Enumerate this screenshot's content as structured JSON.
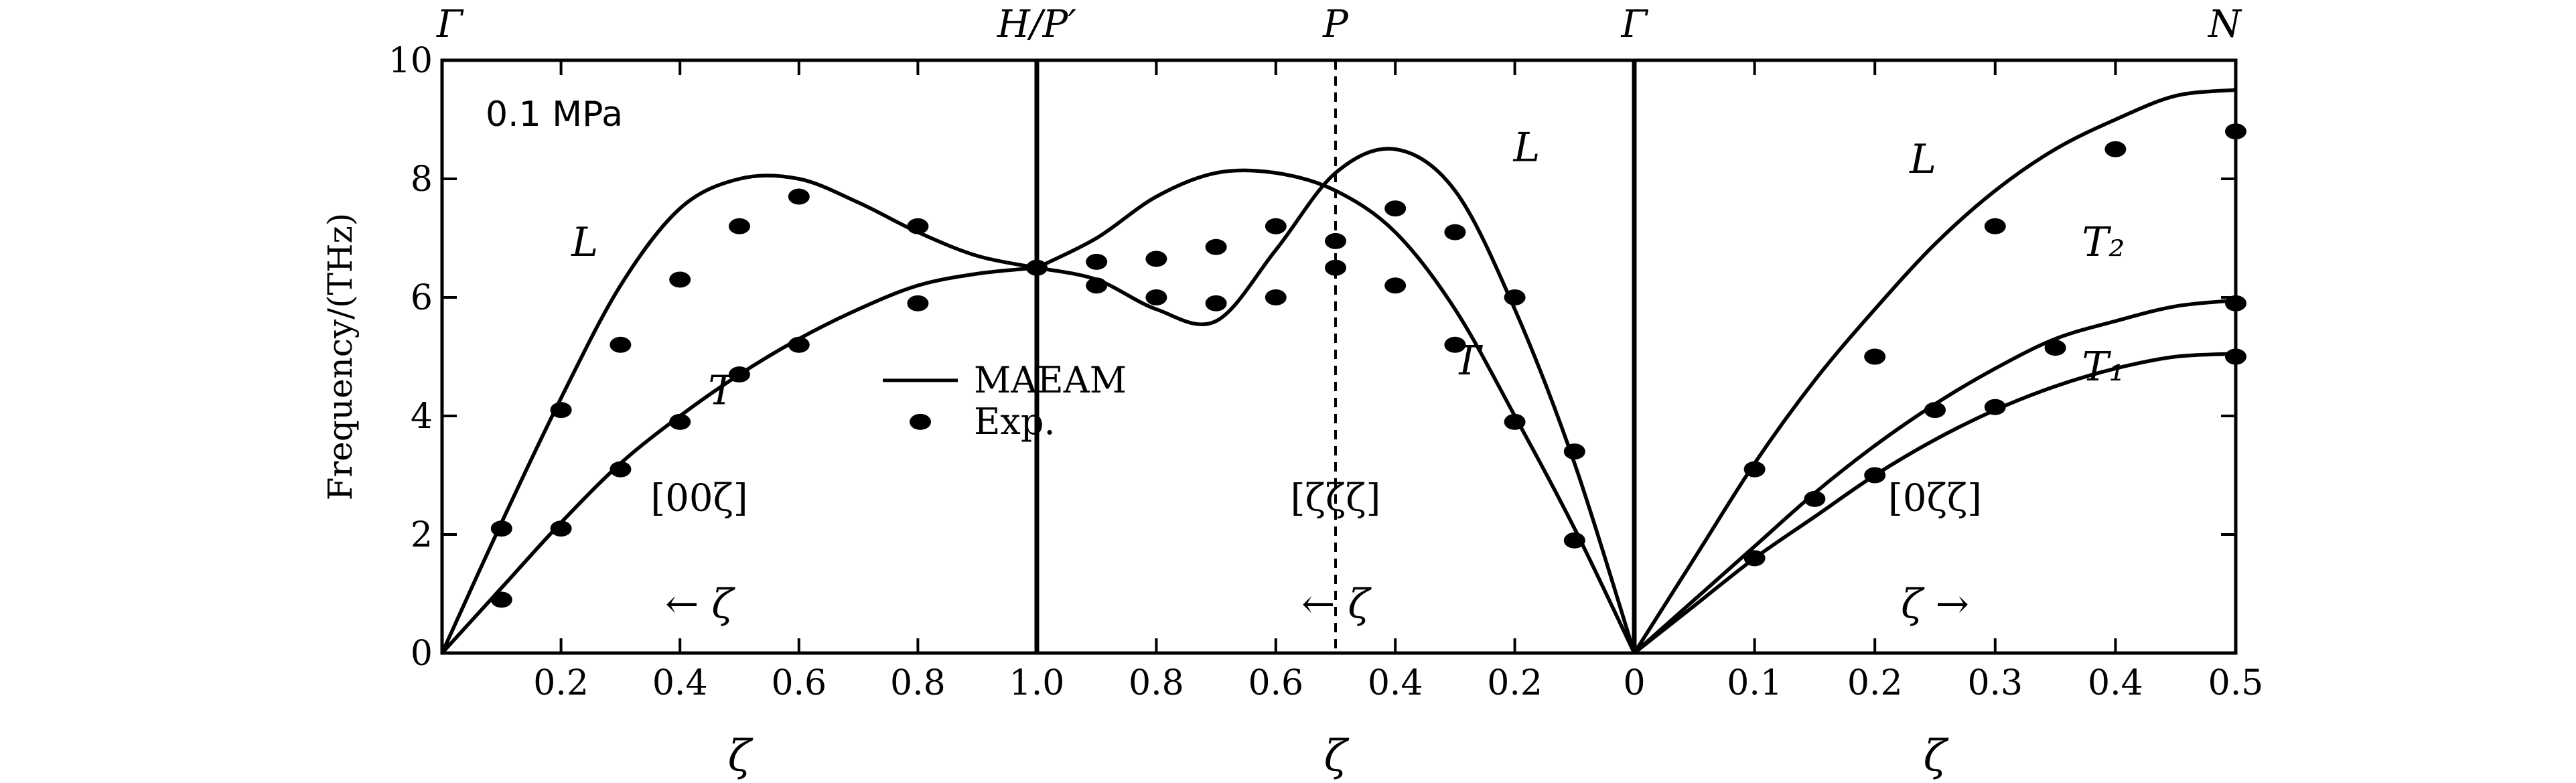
{
  "chart_data": {
    "type": "line",
    "title": "",
    "ylabel": "Frequency/(THz)",
    "ylim": [
      0,
      10
    ],
    "yticks": [
      "0",
      "2",
      "4",
      "6",
      "8",
      "10"
    ],
    "pressure_label": "0.1 MPa",
    "symmetry_points": [
      "Γ",
      "H/P′",
      "P",
      "Γ",
      "N"
    ],
    "panels": [
      {
        "direction": "[00ζ]",
        "xlabel": "ζ",
        "arrow": "← ζ",
        "xlim": [
          0,
          1
        ],
        "xticks": [
          "0.2",
          "0.4",
          "0.6",
          "0.8",
          "1.0"
        ],
        "xtick_values": [
          0.2,
          0.4,
          0.6,
          0.8,
          1.0
        ],
        "series": [
          {
            "name": "L",
            "kind": "theory",
            "x": [
              0,
              0.1,
              0.2,
              0.3,
              0.4,
              0.5,
              0.6,
              0.7,
              0.8,
              0.9,
              1.0
            ],
            "y": [
              0,
              2.2,
              4.3,
              6.2,
              7.5,
              8.0,
              8.0,
              7.6,
              7.1,
              6.7,
              6.5
            ]
          },
          {
            "name": "T",
            "kind": "theory",
            "x": [
              0,
              0.1,
              0.2,
              0.3,
              0.4,
              0.5,
              0.6,
              0.7,
              0.8,
              0.9,
              1.0
            ],
            "y": [
              0,
              1.1,
              2.2,
              3.2,
              4.0,
              4.7,
              5.3,
              5.8,
              6.2,
              6.4,
              6.5
            ]
          },
          {
            "name": "Exp.",
            "kind": "experiment",
            "x": [
              0.1,
              0.2,
              0.3,
              0.4,
              0.5,
              0.6,
              0.8,
              1.0,
              0.1,
              0.2,
              0.3,
              0.4,
              0.5,
              0.6,
              0.8
            ],
            "y": [
              2.1,
              4.1,
              5.2,
              6.3,
              7.2,
              7.7,
              7.2,
              6.5,
              0.9,
              2.1,
              3.1,
              3.9,
              4.7,
              5.2,
              5.9
            ]
          }
        ],
        "labels": [
          {
            "text": "L",
            "x": 0.24,
            "y": 6.7
          },
          {
            "text": "T",
            "x": 0.47,
            "y": 4.2
          }
        ]
      },
      {
        "direction": "[ζζζ]",
        "xlabel": "ζ",
        "arrow": "← ζ",
        "xlim": [
          1,
          0
        ],
        "xticks": [
          "0.8",
          "0.6",
          "0.4",
          "0.2",
          "0"
        ],
        "xtick_values": [
          0.8,
          0.6,
          0.4,
          0.2,
          0
        ],
        "series": [
          {
            "name": "L",
            "kind": "theory",
            "x": [
              1.0,
              0.9,
              0.8,
              0.7,
              0.6,
              0.5,
              0.4,
              0.3,
              0.2,
              0.1,
              0
            ],
            "y": [
              6.5,
              6.3,
              5.8,
              5.6,
              6.8,
              8.1,
              8.5,
              7.8,
              5.8,
              3.2,
              0
            ]
          },
          {
            "name": "T",
            "kind": "theory",
            "x": [
              1.0,
              0.9,
              0.8,
              0.7,
              0.6,
              0.5,
              0.4,
              0.3,
              0.2,
              0.1,
              0
            ],
            "y": [
              6.5,
              7.0,
              7.7,
              8.1,
              8.1,
              7.8,
              7.1,
              5.8,
              4.0,
              2.1,
              0
            ]
          },
          {
            "name": "Exp.",
            "kind": "experiment",
            "x": [
              0.9,
              0.8,
              0.7,
              0.6,
              0.5,
              0.4,
              0.3,
              0.2,
              0.9,
              0.8,
              0.7,
              0.6,
              0.5,
              0.4,
              0.3,
              0.2,
              0.1,
              0.1
            ],
            "y": [
              6.6,
              6.65,
              6.85,
              7.2,
              6.95,
              7.5,
              7.1,
              6.0,
              6.2,
              6.0,
              5.9,
              6.0,
              6.5,
              6.2,
              5.2,
              3.9,
              3.4,
              1.9
            ]
          }
        ],
        "labels": [
          {
            "text": "L",
            "x": 0.18,
            "y": 8.3
          },
          {
            "text": "T",
            "x": 0.28,
            "y": 4.7
          }
        ]
      },
      {
        "direction": "[0ζζ]",
        "xlabel": "ζ",
        "arrow": "ζ →",
        "xlim": [
          0,
          0.5
        ],
        "xticks": [
          "0",
          "0.1",
          "0.2",
          "0.3",
          "0.4",
          "0.5"
        ],
        "xtick_values": [
          0,
          0.1,
          0.2,
          0.3,
          0.4,
          0.5
        ],
        "series": [
          {
            "name": "L",
            "kind": "theory",
            "x": [
              0,
              0.05,
              0.1,
              0.15,
              0.2,
              0.25,
              0.3,
              0.35,
              0.4,
              0.45,
              0.5
            ],
            "y": [
              0,
              1.6,
              3.2,
              4.6,
              5.8,
              6.9,
              7.8,
              8.5,
              9.0,
              9.4,
              9.5
            ]
          },
          {
            "name": "T₂",
            "kind": "theory",
            "x": [
              0,
              0.05,
              0.1,
              0.15,
              0.2,
              0.25,
              0.3,
              0.35,
              0.4,
              0.45,
              0.5
            ],
            "y": [
              0,
              0.9,
              1.8,
              2.7,
              3.5,
              4.2,
              4.8,
              5.3,
              5.6,
              5.85,
              5.95
            ]
          },
          {
            "name": "T₁",
            "kind": "theory",
            "x": [
              0,
              0.05,
              0.1,
              0.15,
              0.2,
              0.25,
              0.3,
              0.35,
              0.4,
              0.45,
              0.5
            ],
            "y": [
              0,
              0.8,
              1.6,
              2.3,
              3.0,
              3.6,
              4.1,
              4.5,
              4.8,
              5.0,
              5.05
            ]
          },
          {
            "name": "Exp.",
            "kind": "experiment",
            "x": [
              0.1,
              0.2,
              0.3,
              0.4,
              0.5,
              0.1,
              0.15,
              0.2,
              0.25,
              0.3,
              0.35,
              0.5,
              0.5
            ],
            "y": [
              3.1,
              5.0,
              7.2,
              8.5,
              8.8,
              1.6,
              2.6,
              3.0,
              4.1,
              4.15,
              5.15,
              5.9,
              5.0
            ]
          }
        ],
        "labels": [
          {
            "text": "L",
            "x": 0.24,
            "y": 8.1
          },
          {
            "text": "T₂",
            "x": 0.39,
            "y": 6.7
          },
          {
            "text": "T₁",
            "x": 0.39,
            "y": 4.6
          }
        ]
      }
    ],
    "legend": {
      "position": "center-left",
      "entries": [
        {
          "name": "MAEAM",
          "marker": "line"
        },
        {
          "name": "Exp.",
          "marker": "dot"
        }
      ]
    }
  }
}
